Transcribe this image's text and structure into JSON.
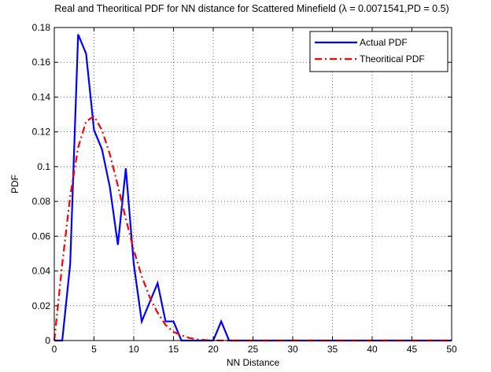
{
  "chart_data": {
    "type": "line",
    "title": "Real and Theoritical PDF for NN distance for Scattered Minefield (λ = 0.0071541,PD = 0.5)",
    "xlabel": "NN Distance",
    "ylabel": "PDF",
    "xlim": [
      0,
      50
    ],
    "ylim": [
      0,
      0.18
    ],
    "xticks": [
      "0",
      "5",
      "10",
      "15",
      "20",
      "25",
      "30",
      "35",
      "40",
      "45",
      "50"
    ],
    "yticks": [
      "0",
      "0.02",
      "0.04",
      "0.06",
      "0.08",
      "0.1",
      "0.12",
      "0.14",
      "0.16",
      "0.18"
    ],
    "grid": true,
    "legend_position": "top-right",
    "series": [
      {
        "name": "Actual PDF",
        "color": "#0000ff",
        "style": "solid",
        "x": [
          0,
          1,
          2,
          3,
          4,
          5,
          6,
          7,
          8,
          9,
          10,
          11,
          12,
          13,
          14,
          15,
          16,
          17,
          18,
          19,
          20,
          21,
          22,
          23,
          24,
          25,
          26,
          27,
          28,
          29,
          30,
          31,
          32,
          33,
          34,
          35,
          36,
          37,
          38,
          39,
          40,
          41,
          42,
          43,
          44,
          45,
          46,
          47,
          48,
          49,
          50
        ],
        "y": [
          0,
          0,
          0.044,
          0.176,
          0.165,
          0.121,
          0.11,
          0.088,
          0.055,
          0.099,
          0.044,
          0.011,
          0.022,
          0.033,
          0.011,
          0.011,
          0,
          0,
          0,
          0,
          0,
          0.011,
          0,
          0,
          0,
          0,
          0,
          0,
          0,
          0,
          0,
          0,
          0,
          0,
          0,
          0,
          0,
          0,
          0,
          0,
          0,
          0,
          0,
          0,
          0,
          0,
          0,
          0,
          0,
          0,
          0
        ]
      },
      {
        "name": "Theoritical PDF",
        "color": "#ff0000",
        "style": "dashdot",
        "x": [
          0,
          1,
          2,
          3,
          4,
          5,
          6,
          7,
          8,
          9,
          10,
          11,
          12,
          13,
          14,
          15,
          16,
          17,
          18,
          19,
          20,
          22,
          25,
          30,
          35,
          40,
          45,
          50
        ],
        "y": [
          0,
          0.044,
          0.083,
          0.111,
          0.126,
          0.129,
          0.121,
          0.107,
          0.089,
          0.07,
          0.052,
          0.037,
          0.025,
          0.016,
          0.009,
          0.005,
          0.003,
          0.0015,
          0.0007,
          0.0003,
          0.0001,
          0,
          0,
          0,
          0,
          0,
          0,
          0
        ]
      }
    ]
  }
}
